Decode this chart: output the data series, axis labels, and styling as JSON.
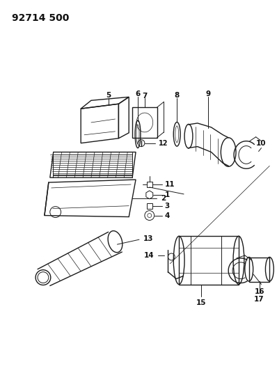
{
  "title": "92714 500",
  "bg_color": "#ffffff",
  "line_color": "#1a1a1a",
  "label_color": "#111111",
  "title_fontsize": 10,
  "label_fontsize": 7.5,
  "figsize": [
    3.98,
    5.33
  ],
  "dpi": 100,
  "parts": {
    "part5_label": "5",
    "part6_label": "6",
    "part7_label": "7",
    "part8_label": "8",
    "part9_label": "9",
    "part10_label": "10",
    "part11_label": "11",
    "part12_label": "12",
    "part1_label": "1",
    "part3_label": "3",
    "part4_label": "4",
    "part2_label": "2",
    "part13_label": "13",
    "part14_label": "14",
    "part15_label": "15",
    "part16_label": "16",
    "part17_label": "17"
  }
}
